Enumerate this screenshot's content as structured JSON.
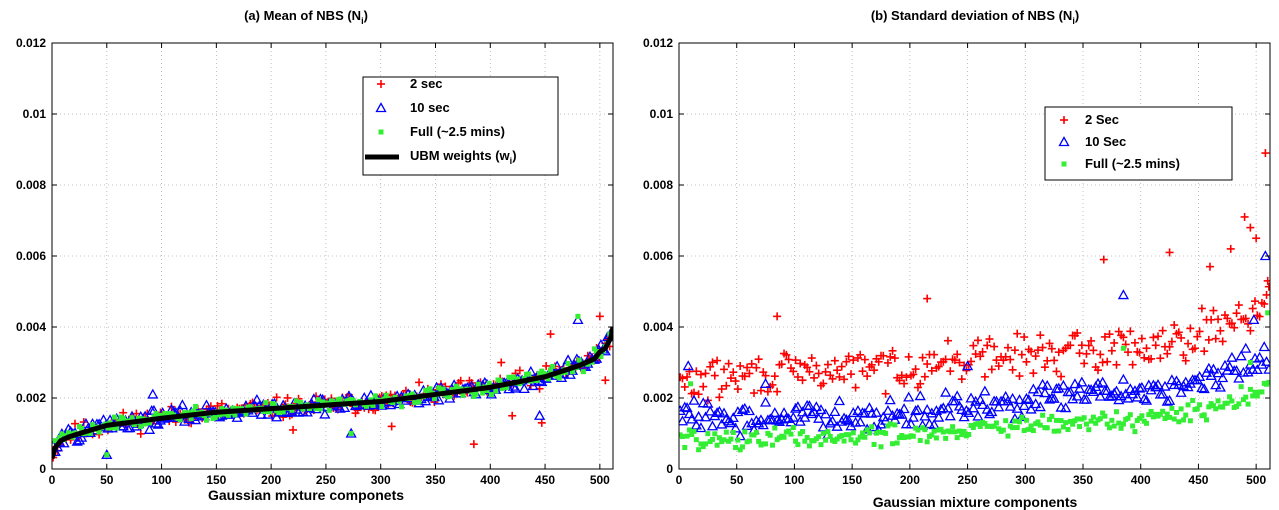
{
  "chart_data": [
    {
      "type": "scatter",
      "title": "(a)  Mean of NBS (N",
      "title_sub": "i",
      "title_close": ")",
      "xlabel": "Gaussian mixture componets",
      "ylabel": "",
      "xlim": [
        0,
        512
      ],
      "ylim": [
        0,
        0.012
      ],
      "x_ticks": [
        0,
        50,
        100,
        150,
        200,
        250,
        300,
        350,
        400,
        450,
        500
      ],
      "y_ticks": [
        0,
        0.002,
        0.004,
        0.006,
        0.008,
        0.01,
        0.012
      ],
      "y_tick_labels": [
        "0",
        "0.002",
        "0.004",
        "0.006",
        "0.008",
        "0.01",
        "0.012"
      ],
      "grid": true,
      "legend_position": "top-right",
      "series": [
        {
          "name": "2 sec",
          "marker": "plus",
          "color": "#ff0000",
          "trend": {
            "x": [
              1,
              10,
              50,
              100,
              150,
              200,
              250,
              300,
              350,
              400,
              450,
              490,
              500,
              512
            ],
            "y": [
              0.0005,
              0.0009,
              0.00125,
              0.00145,
              0.0016,
              0.0017,
              0.0018,
              0.0019,
              0.0021,
              0.0023,
              0.0026,
              0.003,
              0.0033,
              0.0038
            ]
          },
          "spread": 0.0003,
          "outliers": [
            {
              "x": 385,
              "y": 0.0007
            },
            {
              "x": 220,
              "y": 0.0011
            },
            {
              "x": 310,
              "y": 0.0012
            },
            {
              "x": 447,
              "y": 0.0013
            },
            {
              "x": 455,
              "y": 0.0038
            },
            {
              "x": 500,
              "y": 0.0043
            },
            {
              "x": 505,
              "y": 0.0025
            },
            {
              "x": 420,
              "y": 0.0015
            },
            {
              "x": 410,
              "y": 0.003
            }
          ]
        },
        {
          "name": "10 sec",
          "marker": "triangle",
          "color": "#0000ff",
          "trend": {
            "x": [
              1,
              10,
              50,
              100,
              150,
              200,
              250,
              300,
              350,
              400,
              450,
              490,
              500,
              512
            ],
            "y": [
              0.0005,
              0.0009,
              0.00125,
              0.00145,
              0.0016,
              0.0017,
              0.0018,
              0.0019,
              0.0021,
              0.0023,
              0.0026,
              0.003,
              0.0033,
              0.0038
            ]
          },
          "spread": 0.00025,
          "outliers": [
            {
              "x": 50,
              "y": 0.0004
            },
            {
              "x": 273,
              "y": 0.001
            },
            {
              "x": 92,
              "y": 0.0021
            },
            {
              "x": 480,
              "y": 0.0042
            },
            {
              "x": 445,
              "y": 0.0015
            }
          ]
        },
        {
          "name": "Full (~2.5 mins)",
          "marker": "square",
          "color": "#33ee33",
          "trend": {
            "x": [
              1,
              10,
              50,
              100,
              150,
              200,
              250,
              300,
              350,
              400,
              450,
              490,
              500,
              512
            ],
            "y": [
              0.0005,
              0.0009,
              0.00125,
              0.00145,
              0.0016,
              0.0017,
              0.0018,
              0.0019,
              0.0021,
              0.0023,
              0.0026,
              0.003,
              0.0033,
              0.0038
            ]
          },
          "spread": 0.0002,
          "outliers": [
            {
              "x": 50,
              "y": 0.0004
            },
            {
              "x": 273,
              "y": 0.001
            },
            {
              "x": 480,
              "y": 0.0043
            }
          ]
        },
        {
          "name": "UBM weights (w",
          "name_sub": "i",
          "name_close": ")",
          "marker": "line",
          "color": "#000000",
          "x": [
            0,
            3,
            8,
            15,
            25,
            50,
            100,
            150,
            200,
            250,
            300,
            350,
            400,
            450,
            480,
            495,
            500,
            505,
            510,
            512
          ],
          "y": [
            0.0003,
            0.0006,
            0.0008,
            0.0009,
            0.001,
            0.00123,
            0.00143,
            0.0016,
            0.0017,
            0.0018,
            0.0019,
            0.0021,
            0.0023,
            0.0026,
            0.0029,
            0.0031,
            0.0033,
            0.0034,
            0.0037,
            0.004
          ]
        }
      ]
    },
    {
      "type": "scatter",
      "title": "(b)  Standard deviation of NBS (N",
      "title_sub": "i",
      "title_close": ")",
      "xlabel": "Gaussian mixture components",
      "ylabel": "",
      "xlim": [
        0,
        512
      ],
      "ylim": [
        0,
        0.012
      ],
      "x_ticks": [
        0,
        50,
        100,
        150,
        200,
        250,
        300,
        350,
        400,
        450,
        500
      ],
      "y_ticks": [
        0,
        0.002,
        0.004,
        0.006,
        0.008,
        0.01,
        0.012
      ],
      "y_tick_labels": [
        "0",
        "0.002",
        "0.004",
        "0.006",
        "0.008",
        "0.01",
        "0.012"
      ],
      "grid": true,
      "legend_position": "top-right",
      "series": [
        {
          "name": "2 Sec",
          "marker": "plus",
          "color": "#ff0000",
          "trend": {
            "x": [
              1,
              50,
              100,
              150,
              200,
              250,
              300,
              350,
              400,
              450,
              500,
              512
            ],
            "y": [
              0.0024,
              0.0026,
              0.0027,
              0.0028,
              0.0029,
              0.0031,
              0.0032,
              0.0033,
              0.0035,
              0.0038,
              0.0045,
              0.005
            ]
          },
          "spread": 0.0006,
          "outliers": [
            {
              "x": 508,
              "y": 0.0089
            },
            {
              "x": 490,
              "y": 0.0071
            },
            {
              "x": 495,
              "y": 0.0068
            },
            {
              "x": 478,
              "y": 0.0062
            },
            {
              "x": 500,
              "y": 0.0065
            },
            {
              "x": 425,
              "y": 0.0061
            },
            {
              "x": 368,
              "y": 0.0059
            },
            {
              "x": 460,
              "y": 0.0057
            },
            {
              "x": 85,
              "y": 0.0043
            },
            {
              "x": 215,
              "y": 0.0048
            },
            {
              "x": 510,
              "y": 0.0053
            }
          ]
        },
        {
          "name": "10 Sec",
          "marker": "triangle",
          "color": "#0000ff",
          "trend": {
            "x": [
              1,
              50,
              100,
              150,
              200,
              250,
              300,
              350,
              400,
              450,
              500,
              512
            ],
            "y": [
              0.0015,
              0.0014,
              0.0015,
              0.0015,
              0.0016,
              0.0017,
              0.0019,
              0.0021,
              0.0022,
              0.0024,
              0.003,
              0.0033
            ]
          },
          "spread": 0.00045,
          "outliers": [
            {
              "x": 385,
              "y": 0.0049
            },
            {
              "x": 508,
              "y": 0.006
            },
            {
              "x": 498,
              "y": 0.0042
            },
            {
              "x": 8,
              "y": 0.0029
            },
            {
              "x": 75,
              "y": 0.0024
            },
            {
              "x": 250,
              "y": 0.0029
            }
          ]
        },
        {
          "name": "Full (~2.5 mins)",
          "marker": "square",
          "color": "#33ee33",
          "trend": {
            "x": [
              1,
              50,
              100,
              150,
              200,
              250,
              300,
              350,
              400,
              450,
              500,
              512
            ],
            "y": [
              0.0009,
              0.0008,
              0.0009,
              0.0009,
              0.001,
              0.0011,
              0.0012,
              0.0013,
              0.0014,
              0.0016,
              0.0021,
              0.0024
            ]
          },
          "spread": 0.0003,
          "outliers": [
            {
              "x": 510,
              "y": 0.0044
            },
            {
              "x": 385,
              "y": 0.0034
            },
            {
              "x": 10,
              "y": 0.0024
            },
            {
              "x": 495,
              "y": 0.003
            }
          ]
        }
      ]
    }
  ]
}
